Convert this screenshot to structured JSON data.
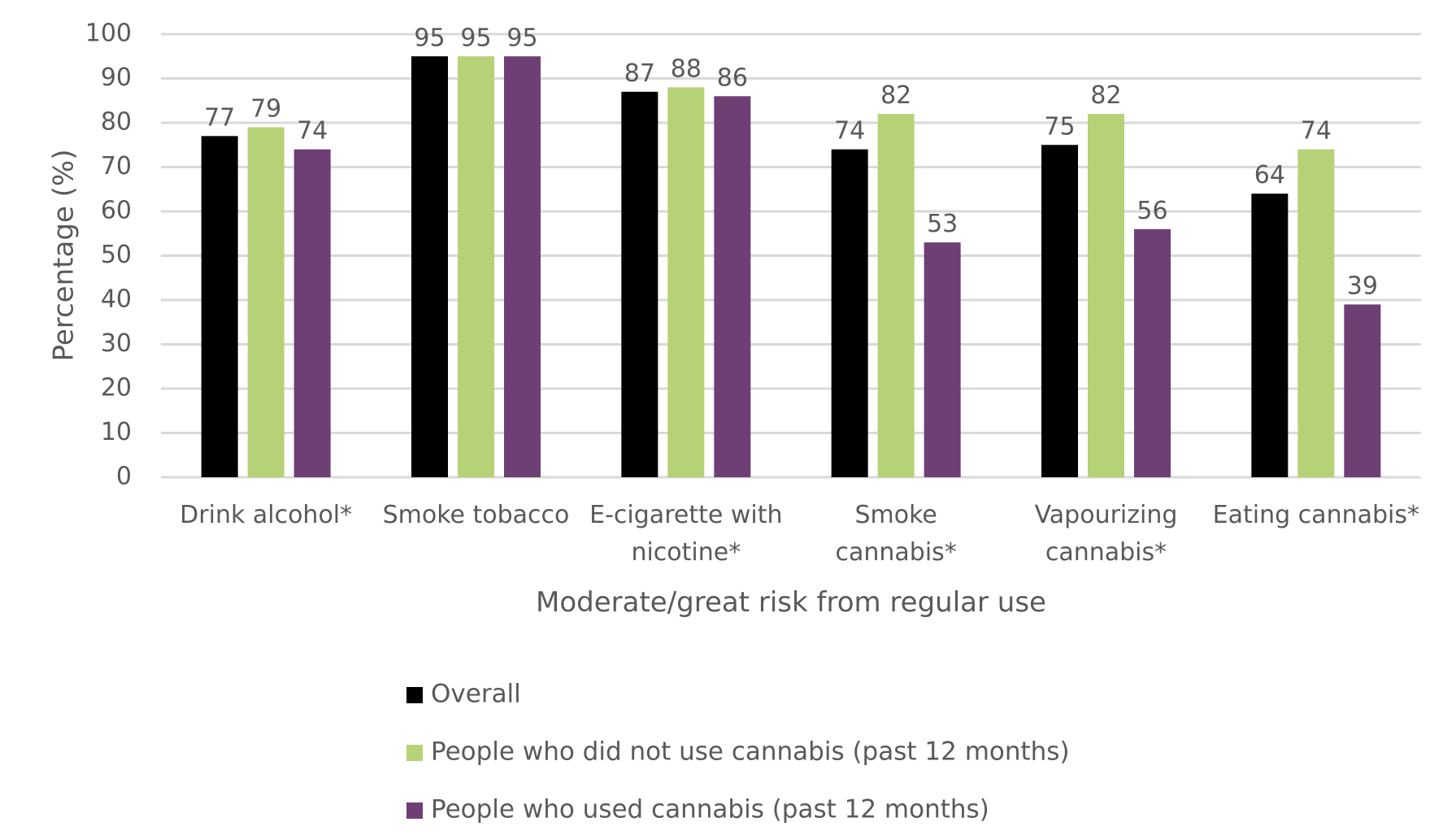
{
  "chart_data": {
    "type": "bar",
    "categories": [
      [
        "Drink alcohol*"
      ],
      [
        "Smoke tobacco"
      ],
      [
        "E-cigarette with",
        "nicotine*"
      ],
      [
        "Smoke",
        "cannabis*"
      ],
      [
        "Vapourizing",
        "cannabis*"
      ],
      [
        "Eating cannabis*"
      ]
    ],
    "series": [
      {
        "name": "Overall",
        "color": "#000000",
        "values": [
          77,
          95,
          87,
          74,
          75,
          64
        ]
      },
      {
        "name": "People who did not use cannabis (past 12 months)",
        "color": "#b5d276",
        "values": [
          79,
          95,
          88,
          82,
          82,
          74
        ]
      },
      {
        "name": "People who used cannabis (past 12 months)",
        "color": "#6e3f74",
        "values": [
          74,
          95,
          86,
          53,
          56,
          39
        ]
      }
    ],
    "xlabel": "Moderate/great risk from regular use",
    "ylabel": "Percentage (%)",
    "ylim": [
      0,
      100
    ],
    "yticks": [
      0,
      10,
      20,
      30,
      40,
      50,
      60,
      70,
      80,
      90,
      100
    ],
    "grid": true,
    "legend": "bottom"
  }
}
